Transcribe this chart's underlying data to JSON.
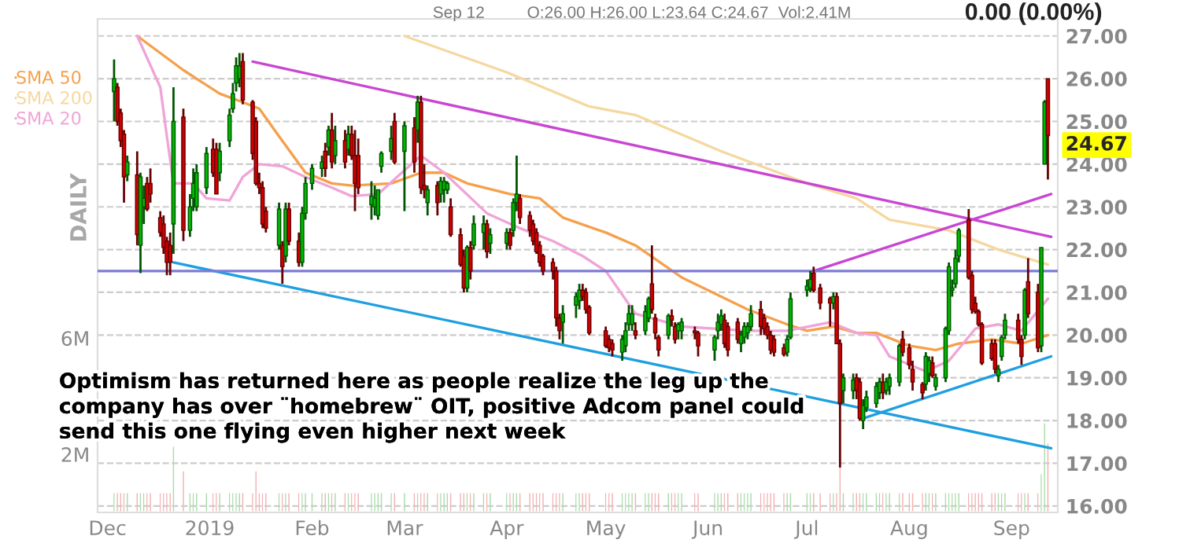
{
  "chart_data": {
    "type": "candlestick",
    "x": [
      "2018-12-03",
      "2018-12-04",
      "2018-12-05",
      "2018-12-06",
      "2018-12-07",
      "2018-12-10",
      "2018-12-11",
      "2018-12-12",
      "2018-12-13",
      "2018-12-14",
      "2018-12-17",
      "2018-12-18",
      "2018-12-19",
      "2018-12-20",
      "2018-12-21",
      "2018-12-24",
      "2018-12-26",
      "2018-12-27",
      "2018-12-28",
      "2018-12-31",
      "2019-01-02",
      "2019-01-03",
      "2019-01-04",
      "2019-01-07",
      "2019-01-08",
      "2019-01-09",
      "2019-01-10",
      "2019-01-11",
      "2019-01-14",
      "2019-01-15",
      "2019-01-16",
      "2019-01-17",
      "2019-01-18",
      "2019-01-22",
      "2019-01-23",
      "2019-01-24",
      "2019-01-25",
      "2019-01-28",
      "2019-01-29",
      "2019-01-30",
      "2019-02-01",
      "2019-02-04",
      "2019-02-05",
      "2019-02-06",
      "2019-02-07",
      "2019-02-08",
      "2019-02-11",
      "2019-02-12",
      "2019-02-13",
      "2019-02-14",
      "2019-02-15",
      "2019-02-19",
      "2019-02-20",
      "2019-02-21",
      "2019-02-22",
      "2019-02-25",
      "2019-02-26",
      "2019-03-01",
      "2019-03-04",
      "2019-03-05",
      "2019-03-06",
      "2019-03-07",
      "2019-03-08",
      "2019-03-11",
      "2019-03-12",
      "2019-03-13",
      "2019-03-14",
      "2019-03-15",
      "2019-03-18",
      "2019-03-19",
      "2019-03-20",
      "2019-03-21",
      "2019-03-22",
      "2019-03-25",
      "2019-03-26",
      "2019-03-27",
      "2019-04-01",
      "2019-04-02",
      "2019-04-03",
      "2019-04-04",
      "2019-04-05",
      "2019-04-08",
      "2019-04-09",
      "2019-04-10",
      "2019-04-11",
      "2019-04-12",
      "2019-04-15",
      "2019-04-16",
      "2019-04-17",
      "2019-04-18",
      "2019-04-22",
      "2019-04-23",
      "2019-04-24",
      "2019-04-25",
      "2019-04-26",
      "2019-05-01",
      "2019-05-02",
      "2019-05-03",
      "2019-05-06",
      "2019-05-07",
      "2019-05-08",
      "2019-05-09",
      "2019-05-10",
      "2019-05-13",
      "2019-05-14",
      "2019-05-15",
      "2019-05-16",
      "2019-05-17",
      "2019-05-20",
      "2019-05-21",
      "2019-05-22",
      "2019-05-23",
      "2019-05-24",
      "2019-05-28",
      "2019-05-29",
      "2019-06-03",
      "2019-06-04",
      "2019-06-05",
      "2019-06-06",
      "2019-06-07",
      "2019-06-10",
      "2019-06-11",
      "2019-06-12",
      "2019-06-13",
      "2019-06-14",
      "2019-06-17",
      "2019-06-18",
      "2019-06-19",
      "2019-06-20",
      "2019-06-21",
      "2019-06-24",
      "2019-06-25",
      "2019-06-26",
      "2019-07-01",
      "2019-07-02",
      "2019-07-03",
      "2019-07-05",
      "2019-07-08",
      "2019-07-09",
      "2019-07-10",
      "2019-07-11",
      "2019-07-12",
      "2019-07-15",
      "2019-07-16",
      "2019-07-17",
      "2019-07-18",
      "2019-07-19",
      "2019-07-22",
      "2019-07-23",
      "2019-07-24",
      "2019-07-25",
      "2019-07-26",
      "2019-07-29",
      "2019-07-30",
      "2019-08-01",
      "2019-08-02",
      "2019-08-05",
      "2019-08-06",
      "2019-08-07",
      "2019-08-08",
      "2019-08-09",
      "2019-08-12",
      "2019-08-13",
      "2019-08-14",
      "2019-08-15",
      "2019-08-16",
      "2019-08-19",
      "2019-08-20",
      "2019-08-21",
      "2019-08-22",
      "2019-08-23",
      "2019-08-26",
      "2019-08-27",
      "2019-08-28",
      "2019-08-29",
      "2019-08-30",
      "2019-09-03",
      "2019-09-04",
      "2019-09-05",
      "2019-09-06",
      "2019-09-09",
      "2019-09-10",
      "2019-09-11",
      "2019-09-12"
    ],
    "ohlc": [
      [
        25.7,
        26.45,
        25.0,
        26.0
      ],
      [
        25.8,
        25.9,
        24.9,
        25.0
      ],
      [
        25.2,
        25.3,
        24.4,
        24.55
      ],
      [
        24.7,
        24.8,
        23.1,
        23.7
      ],
      [
        23.75,
        24.2,
        23.6,
        24.05
      ],
      [
        23.75,
        24.3,
        22.1,
        22.35
      ],
      [
        22.1,
        23.8,
        21.45,
        23.7
      ],
      [
        23.0,
        23.5,
        22.6,
        23.2
      ],
      [
        23.55,
        23.7,
        22.9,
        22.95
      ],
      [
        23.55,
        23.9,
        23.1,
        23.3
      ],
      [
        22.75,
        22.9,
        22.3,
        22.4
      ],
      [
        22.6,
        22.8,
        21.9,
        22.05
      ],
      [
        22.2,
        22.3,
        21.4,
        21.7
      ],
      [
        22.1,
        22.4,
        21.4,
        21.7
      ],
      [
        22.6,
        25.8,
        21.9,
        25.0
      ],
      [
        25.1,
        25.3,
        22.2,
        22.45
      ],
      [
        22.45,
        23.3,
        22.3,
        23.0
      ],
      [
        23.2,
        23.9,
        22.9,
        23.55
      ],
      [
        23.0,
        24.0,
        22.9,
        23.8
      ],
      [
        23.45,
        24.4,
        23.3,
        24.25
      ],
      [
        24.35,
        24.6,
        23.7,
        23.8
      ],
      [
        24.35,
        24.5,
        23.3,
        23.3
      ],
      [
        23.8,
        24.5,
        23.6,
        24.3
      ],
      [
        24.55,
        25.3,
        24.4,
        25.15
      ],
      [
        25.3,
        25.9,
        25.2,
        25.65
      ],
      [
        25.9,
        26.5,
        25.7,
        26.3
      ],
      [
        26.0,
        26.6,
        25.8,
        26.3
      ],
      [
        26.4,
        26.6,
        25.4,
        25.5
      ],
      [
        25.45,
        25.5,
        24.1,
        24.25
      ],
      [
        25.0,
        25.1,
        23.5,
        23.55
      ],
      [
        23.55,
        23.8,
        23.3,
        23.45
      ],
      [
        23.45,
        23.6,
        22.5,
        22.6
      ],
      [
        22.9,
        23.0,
        22.4,
        22.5
      ],
      [
        22.1,
        23.1,
        22.0,
        22.95
      ],
      [
        22.1,
        22.2,
        21.2,
        21.6
      ],
      [
        21.85,
        23.1,
        21.7,
        22.95
      ],
      [
        22.95,
        23.1,
        22.1,
        22.2
      ],
      [
        22.2,
        22.4,
        21.6,
        21.7
      ],
      [
        21.7,
        23.0,
        21.6,
        22.85
      ],
      [
        22.85,
        23.7,
        22.7,
        23.55
      ],
      [
        23.55,
        24.0,
        23.4,
        23.9
      ],
      [
        23.9,
        24.2,
        23.7,
        24.05
      ],
      [
        24.3,
        24.5,
        23.7,
        23.9
      ],
      [
        24.4,
        24.9,
        24.2,
        24.8
      ],
      [
        24.8,
        25.2,
        23.9,
        24.05
      ],
      [
        24.2,
        24.9,
        24.0,
        24.55
      ],
      [
        24.55,
        24.8,
        23.9,
        24.05
      ],
      [
        24.35,
        24.9,
        24.2,
        24.7
      ],
      [
        24.7,
        24.9,
        24.1,
        24.2
      ],
      [
        24.2,
        24.8,
        22.9,
        23.55
      ],
      [
        24.2,
        24.6,
        23.3,
        23.45
      ],
      [
        23.05,
        23.6,
        22.7,
        23.25
      ],
      [
        23.0,
        23.5,
        22.8,
        23.2
      ],
      [
        22.8,
        23.4,
        22.7,
        23.4
      ],
      [
        23.95,
        24.3,
        23.8,
        24.25
      ],
      [
        24.3,
        24.9,
        24.1,
        24.6
      ],
      [
        25.0,
        25.2,
        24.0,
        24.05
      ],
      [
        24.3,
        25.0,
        22.9,
        24.9
      ],
      [
        24.85,
        25.1,
        23.8,
        24.05
      ],
      [
        24.8,
        25.6,
        24.5,
        25.45
      ],
      [
        25.45,
        25.6,
        23.3,
        23.45
      ],
      [
        23.5,
        24.0,
        23.2,
        23.4
      ],
      [
        23.1,
        23.5,
        22.8,
        23.4
      ],
      [
        23.5,
        23.6,
        22.8,
        23.1
      ],
      [
        23.3,
        23.7,
        23.1,
        23.6
      ],
      [
        23.4,
        23.7,
        23.1,
        23.6
      ],
      [
        23.4,
        23.6,
        23.3,
        23.55
      ],
      [
        23.0,
        23.2,
        22.3,
        22.35
      ],
      [
        22.35,
        22.5,
        21.6,
        21.65
      ],
      [
        21.85,
        22.0,
        21.0,
        21.1
      ],
      [
        21.1,
        22.1,
        21.0,
        22.05
      ],
      [
        22.05,
        22.2,
        21.3,
        21.5
      ],
      [
        22.1,
        22.8,
        22.0,
        22.6
      ],
      [
        22.4,
        22.8,
        22.0,
        22.6
      ],
      [
        22.6,
        22.7,
        21.8,
        21.95
      ],
      [
        22.15,
        22.5,
        21.9,
        22.35
      ],
      [
        22.15,
        22.5,
        22.0,
        22.4
      ],
      [
        22.4,
        22.5,
        22.0,
        22.1
      ],
      [
        22.45,
        23.2,
        22.3,
        23.1
      ],
      [
        23.1,
        24.2,
        22.9,
        23.3
      ],
      [
        23.2,
        23.3,
        22.6,
        22.75
      ],
      [
        22.8,
        22.9,
        22.3,
        22.45
      ],
      [
        22.6,
        22.7,
        22.1,
        22.2
      ],
      [
        22.4,
        22.5,
        21.9,
        21.95
      ],
      [
        22.1,
        22.2,
        21.6,
        21.7
      ],
      [
        21.85,
        21.9,
        21.4,
        21.5
      ],
      [
        21.7,
        21.8,
        21.3,
        21.5
      ],
      [
        21.5,
        21.6,
        20.2,
        20.4
      ],
      [
        20.4,
        20.5,
        19.9,
        20.1
      ],
      [
        20.3,
        20.7,
        19.8,
        20.5
      ],
      [
        20.7,
        21.0,
        20.4,
        20.9
      ],
      [
        20.8,
        21.2,
        20.6,
        21.05
      ],
      [
        21.05,
        21.2,
        20.8,
        20.9
      ],
      [
        21.0,
        21.1,
        20.5,
        20.6
      ],
      [
        20.65,
        20.7,
        20.0,
        20.05
      ],
      [
        20.1,
        20.2,
        19.7,
        19.75
      ],
      [
        19.9,
        20.0,
        19.6,
        19.7
      ],
      [
        19.8,
        19.9,
        19.5,
        19.65
      ],
      [
        19.6,
        20.0,
        19.4,
        19.9
      ],
      [
        19.75,
        20.3,
        19.6,
        20.1
      ],
      [
        20.25,
        20.7,
        20.1,
        20.5
      ],
      [
        20.25,
        20.7,
        20.1,
        20.5
      ],
      [
        20.1,
        20.3,
        19.9,
        20.0
      ],
      [
        20.1,
        20.7,
        20.0,
        20.55
      ],
      [
        20.4,
        20.9,
        20.3,
        20.85
      ],
      [
        21.2,
        22.1,
        20.5,
        20.6
      ],
      [
        20.4,
        20.5,
        19.9,
        20.05
      ],
      [
        19.95,
        20.0,
        19.5,
        19.65
      ],
      [
        20.0,
        20.5,
        19.9,
        20.45
      ],
      [
        20.45,
        20.6,
        20.2,
        20.35
      ],
      [
        20.2,
        20.3,
        19.8,
        19.9
      ],
      [
        20.1,
        20.3,
        19.9,
        20.25
      ],
      [
        20.1,
        20.4,
        19.9,
        20.3
      ],
      [
        20.1,
        20.2,
        19.9,
        20.05
      ],
      [
        20.05,
        20.1,
        19.5,
        19.75
      ],
      [
        19.65,
        20.0,
        19.4,
        19.95
      ],
      [
        20.1,
        20.5,
        19.9,
        20.3
      ],
      [
        20.25,
        20.6,
        20.1,
        20.45
      ],
      [
        20.35,
        20.5,
        19.7,
        19.8
      ],
      [
        20.2,
        20.3,
        19.5,
        19.65
      ],
      [
        20.3,
        20.4,
        19.8,
        19.9
      ],
      [
        19.8,
        20.1,
        19.6,
        20.0
      ],
      [
        19.95,
        20.3,
        19.8,
        20.2
      ],
      [
        20.05,
        20.3,
        19.9,
        20.2
      ],
      [
        20.2,
        20.7,
        20.1,
        20.5
      ],
      [
        20.6,
        20.8,
        20.0,
        20.2
      ],
      [
        20.4,
        20.5,
        20.0,
        20.15
      ],
      [
        20.2,
        20.3,
        19.9,
        20.0
      ],
      [
        20.0,
        20.1,
        19.55,
        19.65
      ],
      [
        19.9,
        20.0,
        19.5,
        19.6
      ],
      [
        19.7,
        19.8,
        19.5,
        19.55
      ],
      [
        19.6,
        20.0,
        19.5,
        19.9
      ],
      [
        19.95,
        21.0,
        19.9,
        20.85
      ],
      [
        21.05,
        21.3,
        20.9,
        21.15
      ],
      [
        21.1,
        21.5,
        21.0,
        21.3
      ],
      [
        21.45,
        21.6,
        21.0,
        21.05
      ],
      [
        21.1,
        21.2,
        20.6,
        20.75
      ],
      [
        20.85,
        20.9,
        20.2,
        20.75
      ],
      [
        20.75,
        21.0,
        20.6,
        20.9
      ],
      [
        20.9,
        21.0,
        19.8,
        19.8
      ],
      [
        19.8,
        19.9,
        16.9,
        18.4
      ],
      [
        18.7,
        19.1,
        18.4,
        19.0
      ],
      [
        18.7,
        19.1,
        18.5,
        18.95
      ],
      [
        19.0,
        19.1,
        18.5,
        18.7
      ],
      [
        18.9,
        19.0,
        18.0,
        18.05
      ],
      [
        18.0,
        18.5,
        17.8,
        18.35
      ],
      [
        18.3,
        18.7,
        18.2,
        18.55
      ],
      [
        18.4,
        18.9,
        18.3,
        18.8
      ],
      [
        18.65,
        19.0,
        18.5,
        18.9
      ],
      [
        18.9,
        19.1,
        18.5,
        18.65
      ],
      [
        18.7,
        19.0,
        18.6,
        18.9
      ],
      [
        18.8,
        19.1,
        18.6,
        19.0
      ],
      [
        18.9,
        19.8,
        18.8,
        19.75
      ],
      [
        19.9,
        20.1,
        19.5,
        19.6
      ],
      [
        19.7,
        19.8,
        19.2,
        19.3
      ],
      [
        19.2,
        19.4,
        18.7,
        18.9
      ],
      [
        18.85,
        18.9,
        18.5,
        18.65
      ],
      [
        18.85,
        19.6,
        18.7,
        19.5
      ],
      [
        19.1,
        19.5,
        18.9,
        19.4
      ],
      [
        19.35,
        19.5,
        19.0,
        19.05
      ],
      [
        18.8,
        19.1,
        18.7,
        19.0
      ],
      [
        19.0,
        20.2,
        18.9,
        20.15
      ],
      [
        20.1,
        21.7,
        20.0,
        21.6
      ],
      [
        21.05,
        21.3,
        20.9,
        21.1
      ],
      [
        21.2,
        22.0,
        21.1,
        21.8
      ],
      [
        21.85,
        22.5,
        21.7,
        22.45
      ],
      [
        22.7,
        22.95,
        21.3,
        21.35
      ],
      [
        21.4,
        21.5,
        20.5,
        20.6
      ],
      [
        20.75,
        20.9,
        20.5,
        20.55
      ],
      [
        20.55,
        20.6,
        20.2,
        20.25
      ],
      [
        20.25,
        20.3,
        19.3,
        19.35
      ],
      [
        19.8,
        19.9,
        19.4,
        19.45
      ],
      [
        19.8,
        19.9,
        19.1,
        19.2
      ],
      [
        19.05,
        19.3,
        18.9,
        19.2
      ],
      [
        19.5,
        20.0,
        19.4,
        19.95
      ],
      [
        20.0,
        20.5,
        19.9,
        20.35
      ],
      [
        20.35,
        20.5,
        19.8,
        19.9
      ],
      [
        19.9,
        20.0,
        19.3,
        19.5
      ],
      [
        20.0,
        21.1,
        19.9,
        21.05
      ],
      [
        21.25,
        21.8,
        20.4,
        20.5
      ],
      [
        21.0,
        21.2,
        19.6,
        19.7
      ],
      [
        19.75,
        22.05,
        19.6,
        22.05
      ],
      [
        24.0,
        25.5,
        24.0,
        25.45
      ],
      [
        26.0,
        26.0,
        23.64,
        24.67
      ]
    ],
    "colors": [
      "#00b800",
      "#d00000",
      "#d00000",
      "#d00000",
      "#00b800",
      "#d00000",
      "#00b800",
      "#00b800",
      "#d00000",
      "#d00000",
      "#d00000",
      "#d00000",
      "#d00000",
      "#d00000",
      "#00b800",
      "#d00000",
      "#00b800",
      "#00b800",
      "#00b800",
      "#00b800",
      "#d00000",
      "#d00000",
      "#00b800",
      "#00b800",
      "#00b800",
      "#00b800",
      "#00b800",
      "#d00000",
      "#d00000",
      "#d00000",
      "#d00000",
      "#d00000",
      "#d00000",
      "#00b800",
      "#d00000",
      "#00b800",
      "#d00000",
      "#d00000",
      "#00b800",
      "#00b800",
      "#00b800",
      "#00b800",
      "#d00000",
      "#00b800",
      "#d00000",
      "#00b800",
      "#d00000",
      "#00b800",
      "#d00000",
      "#d00000",
      "#d00000",
      "#00b800",
      "#00b800",
      "#00b800",
      "#00b800",
      "#00b800",
      "#d00000",
      "#00b800",
      "#d00000",
      "#00b800",
      "#d00000",
      "#d00000",
      "#00b800",
      "#d00000",
      "#00b800",
      "#00b800",
      "#00b800",
      "#d00000",
      "#d00000",
      "#d00000",
      "#00b800",
      "#d00000",
      "#00b800",
      "#00b800",
      "#d00000",
      "#00b800",
      "#00b800",
      "#d00000",
      "#00b800",
      "#00b800",
      "#d00000",
      "#d00000",
      "#d00000",
      "#d00000",
      "#d00000",
      "#d00000",
      "#d00000",
      "#d00000",
      "#d00000",
      "#00b800",
      "#00b800",
      "#00b800",
      "#d00000",
      "#d00000",
      "#d00000",
      "#d00000",
      "#d00000",
      "#d00000",
      "#00b800",
      "#00b800",
      "#00b800",
      "#00b800",
      "#d00000",
      "#00b800",
      "#00b800",
      "#d00000",
      "#d00000",
      "#d00000",
      "#00b800",
      "#d00000",
      "#d00000",
      "#00b800",
      "#00b800",
      "#d00000",
      "#d00000",
      "#00b800",
      "#00b800",
      "#00b800",
      "#d00000",
      "#d00000",
      "#d00000",
      "#00b800",
      "#00b800",
      "#00b800",
      "#00b800",
      "#d00000",
      "#d00000",
      "#d00000",
      "#d00000",
      "#d00000",
      "#d00000",
      "#00b800",
      "#00b800",
      "#00b800",
      "#00b800",
      "#d00000",
      "#d00000",
      "#d00000",
      "#00b800",
      "#d00000",
      "#d00000",
      "#00b800",
      "#00b800",
      "#d00000",
      "#d00000",
      "#00b800",
      "#00b800",
      "#00b800",
      "#00b800",
      "#d00000",
      "#00b800",
      "#00b800",
      "#00b800",
      "#d00000",
      "#d00000",
      "#d00000",
      "#d00000",
      "#00b800",
      "#00b800",
      "#d00000",
      "#00b800",
      "#00b800",
      "#00b800",
      "#00b800",
      "#00b800",
      "#00b800",
      "#d00000",
      "#d00000",
      "#d00000",
      "#d00000",
      "#d00000",
      "#d00000",
      "#d00000",
      "#00b800",
      "#00b800",
      "#00b800",
      "#d00000",
      "#d00000",
      "#00b800",
      "#d00000",
      "#d00000",
      "#00b800",
      "#00b800",
      "#d00000"
    ],
    "series": [
      {
        "type": "bar",
        "axis": "y2",
        "colors": [
          "#a8dca8",
          "#f4b0b0",
          "#f4b0b0",
          "#f4b0b0",
          "#a8dca8",
          "#f4b0b0",
          "#a8dca8",
          "#a8dca8",
          "#f4b0b0",
          "#f4b0b0",
          "#f4b0b0",
          "#f4b0b0",
          "#f4b0b0",
          "#f4b0b0",
          "#a8dca8",
          "#f4b0b0",
          "#a8dca8",
          "#a8dca8",
          "#a8dca8",
          "#a8dca8",
          "#f4b0b0",
          "#f4b0b0",
          "#a8dca8",
          "#a8dca8",
          "#a8dca8",
          "#a8dca8",
          "#a8dca8",
          "#f4b0b0",
          "#f4b0b0",
          "#f4b0b0",
          "#f4b0b0",
          "#f4b0b0",
          "#f4b0b0",
          "#a8dca8",
          "#f4b0b0",
          "#a8dca8",
          "#f4b0b0",
          "#f4b0b0",
          "#a8dca8",
          "#a8dca8",
          "#a8dca8",
          "#a8dca8",
          "#f4b0b0",
          "#a8dca8",
          "#f4b0b0",
          "#a8dca8",
          "#f4b0b0",
          "#a8dca8",
          "#f4b0b0",
          "#f4b0b0",
          "#f4b0b0",
          "#a8dca8",
          "#a8dca8",
          "#a8dca8",
          "#a8dca8",
          "#a8dca8",
          "#f4b0b0",
          "#a8dca8",
          "#f4b0b0",
          "#a8dca8",
          "#f4b0b0",
          "#f4b0b0",
          "#a8dca8",
          "#f4b0b0",
          "#a8dca8",
          "#a8dca8",
          "#a8dca8",
          "#f4b0b0",
          "#f4b0b0",
          "#f4b0b0",
          "#a8dca8",
          "#f4b0b0",
          "#a8dca8",
          "#a8dca8",
          "#f4b0b0",
          "#a8dca8",
          "#a8dca8",
          "#f4b0b0",
          "#a8dca8",
          "#a8dca8",
          "#f4b0b0",
          "#f4b0b0",
          "#f4b0b0",
          "#f4b0b0",
          "#f4b0b0",
          "#f4b0b0",
          "#f4b0b0",
          "#f4b0b0",
          "#f4b0b0",
          "#a8dca8",
          "#a8dca8",
          "#a8dca8",
          "#f4b0b0",
          "#f4b0b0",
          "#f4b0b0",
          "#f4b0b0",
          "#f4b0b0",
          "#f4b0b0",
          "#a8dca8",
          "#a8dca8",
          "#a8dca8",
          "#a8dca8",
          "#f4b0b0",
          "#a8dca8",
          "#a8dca8",
          "#f4b0b0",
          "#f4b0b0",
          "#f4b0b0",
          "#a8dca8",
          "#f4b0b0",
          "#f4b0b0",
          "#a8dca8",
          "#a8dca8",
          "#f4b0b0",
          "#f4b0b0",
          "#a8dca8",
          "#a8dca8",
          "#a8dca8",
          "#f4b0b0",
          "#f4b0b0",
          "#f4b0b0",
          "#a8dca8",
          "#a8dca8",
          "#a8dca8",
          "#a8dca8",
          "#f4b0b0",
          "#f4b0b0",
          "#f4b0b0",
          "#f4b0b0",
          "#f4b0b0",
          "#f4b0b0",
          "#a8dca8",
          "#a8dca8",
          "#a8dca8",
          "#a8dca8",
          "#f4b0b0",
          "#f4b0b0",
          "#f4b0b0",
          "#a8dca8",
          "#f4b0b0",
          "#f4b0b0",
          "#a8dca8",
          "#a8dca8",
          "#f4b0b0",
          "#f4b0b0",
          "#a8dca8",
          "#a8dca8",
          "#a8dca8",
          "#a8dca8",
          "#f4b0b0",
          "#a8dca8",
          "#a8dca8",
          "#a8dca8",
          "#f4b0b0",
          "#f4b0b0",
          "#f4b0b0",
          "#f4b0b0",
          "#a8dca8",
          "#a8dca8",
          "#f4b0b0",
          "#a8dca8",
          "#a8dca8",
          "#a8dca8",
          "#a8dca8",
          "#a8dca8",
          "#a8dca8",
          "#f4b0b0",
          "#f4b0b0",
          "#f4b0b0",
          "#f4b0b0",
          "#f4b0b0",
          "#f4b0b0",
          "#f4b0b0",
          "#a8dca8",
          "#a8dca8",
          "#a8dca8",
          "#f4b0b0",
          "#f4b0b0",
          "#a8dca8",
          "#f4b0b0",
          "#f4b0b0",
          "#a8dca8",
          "#a8dca8",
          "#f4b0b0"
        ],
        "values": [
          0.7,
          0.7,
          0.7,
          0.7,
          0.7,
          0.7,
          0.7,
          0.7,
          0.7,
          0.7,
          0.7,
          0.7,
          0.7,
          0.7,
          2.3,
          1.45,
          0.7,
          0.7,
          0.7,
          0.7,
          0.7,
          0.7,
          0.7,
          0.7,
          0.7,
          0.7,
          0.7,
          0.7,
          0.7,
          1.45,
          0.7,
          0.7,
          0.7,
          0.7,
          0.7,
          0.7,
          0.7,
          0.7,
          0.7,
          0.7,
          0.7,
          0.7,
          0.7,
          0.7,
          0.7,
          0.7,
          0.7,
          0.7,
          0.7,
          0.7,
          0.7,
          0.7,
          0.7,
          0.7,
          0.7,
          0.7,
          0.7,
          0.7,
          0.7,
          0.7,
          0.7,
          0.7,
          0.7,
          0.7,
          0.7,
          0.7,
          0.7,
          0.7,
          0.7,
          0.7,
          0.7,
          0.7,
          0.7,
          0.7,
          0.7,
          0.7,
          0.7,
          0.7,
          0.7,
          0.7,
          0.7,
          0.7,
          0.7,
          0.7,
          0.7,
          0.7,
          0.7,
          0.7,
          0.7,
          0.7,
          0.7,
          0.7,
          0.7,
          0.7,
          0.7,
          0.7,
          0.7,
          0.7,
          0.7,
          0.7,
          0.7,
          0.7,
          0.7,
          0.7,
          0.7,
          0.7,
          0.7,
          0.7,
          0.7,
          0.7,
          0.7,
          0.7,
          0.7,
          0.7,
          0.7,
          0.7,
          0.7,
          0.7,
          0.7,
          0.7,
          0.7,
          0.7,
          0.7,
          0.7,
          0.7,
          0.7,
          0.7,
          0.7,
          0.7,
          0.7,
          0.7,
          0.7,
          0.7,
          0.7,
          0.7,
          0.7,
          0.7,
          0.7,
          0.7,
          0.7,
          1.6,
          0.7,
          0.7,
          0.7,
          0.7,
          0.7,
          0.7,
          0.7,
          0.7,
          0.7,
          0.7,
          0.7,
          0.7,
          0.7,
          0.7,
          0.7,
          0.7,
          0.7,
          0.7,
          0.7,
          0.7,
          0.7,
          0.7,
          0.7,
          0.7,
          0.7,
          0.7,
          0.7,
          0.7,
          0.7,
          0.7,
          0.7,
          0.7,
          0.7,
          0.7,
          0.7,
          0.7,
          0.7,
          0.7,
          0.7,
          0.7,
          1.35,
          3.1,
          2.41
        ]
      },
      {
        "type": "line",
        "name": "SMA 50",
        "color": "#f5a04c",
        "x": [
          "2018-12-10",
          "2018-12-24",
          "2019-01-04",
          "2019-01-11",
          "2019-01-16",
          "2019-01-22",
          "2019-01-30",
          "2019-02-07",
          "2019-02-13",
          "2019-02-25",
          "2019-03-06",
          "2019-03-13",
          "2019-03-20",
          "2019-04-02",
          "2019-04-11",
          "2019-04-18",
          "2019-05-01",
          "2019-05-10",
          "2019-05-24",
          "2019-06-13",
          "2019-06-25",
          "2019-07-01",
          "2019-07-09",
          "2019-07-16",
          "2019-07-22",
          "2019-08-01",
          "2019-08-09",
          "2019-08-16",
          "2019-08-26",
          "2019-09-04",
          "2019-09-12"
        ],
        "values": [
          27.0,
          26.2,
          25.65,
          25.45,
          25.3,
          24.65,
          23.8,
          23.55,
          23.5,
          23.55,
          23.8,
          23.8,
          23.55,
          23.3,
          23.2,
          22.75,
          22.4,
          22.1,
          21.35,
          20.6,
          20.25,
          20.1,
          20.2,
          20.05,
          20.05,
          19.75,
          19.65,
          19.8,
          19.9,
          19.8,
          20.0
        ]
      },
      {
        "type": "line",
        "name": "SMA 200",
        "color": "#f5d8a0",
        "x": [
          "2019-03-01",
          "2019-04-01",
          "2019-04-26",
          "2019-05-10",
          "2019-06-05",
          "2019-07-01",
          "2019-07-16",
          "2019-07-26",
          "2019-08-13",
          "2019-08-28",
          "2019-09-12"
        ],
        "values": [
          27.0,
          26.15,
          25.35,
          25.15,
          24.3,
          23.55,
          23.2,
          22.7,
          22.45,
          22.0,
          21.65
        ]
      },
      {
        "type": "line",
        "name": "SMA 20",
        "color": "#f0a4d8",
        "x": [
          "2018-12-10",
          "2018-12-17",
          "2018-12-19",
          "2018-12-21",
          "2018-12-27",
          "2018-12-31",
          "2019-01-07",
          "2019-01-11",
          "2019-01-16",
          "2019-01-23",
          "2019-01-30",
          "2019-02-07",
          "2019-02-13",
          "2019-02-21",
          "2019-03-06",
          "2019-03-13",
          "2019-03-26",
          "2019-04-05",
          "2019-04-15",
          "2019-04-24",
          "2019-05-01",
          "2019-05-10",
          "2019-05-24",
          "2019-06-13",
          "2019-06-25",
          "2019-07-08",
          "2019-07-16",
          "2019-07-22",
          "2019-07-26",
          "2019-08-06",
          "2019-08-13",
          "2019-08-21",
          "2019-08-28",
          "2019-09-04",
          "2019-09-12"
        ],
        "values": [
          27.0,
          25.8,
          24.65,
          23.55,
          23.55,
          23.2,
          23.15,
          23.7,
          24.0,
          23.95,
          23.7,
          23.45,
          23.25,
          23.3,
          24.2,
          23.8,
          22.85,
          22.5,
          22.2,
          21.85,
          21.5,
          20.5,
          20.2,
          20.1,
          20.1,
          20.3,
          20.05,
          20.0,
          19.5,
          19.15,
          19.4,
          20.15,
          20.25,
          20.1,
          20.85
        ]
      },
      {
        "type": "line",
        "color": "#c846d2",
        "x": [
          "2019-01-14",
          "2019-09-13"
        ],
        "values": [
          26.4,
          22.3
        ]
      },
      {
        "type": "line",
        "color": "#c846d2",
        "x": [
          "2019-07-03",
          "2019-09-13"
        ],
        "values": [
          21.5,
          23.3
        ]
      },
      {
        "type": "line",
        "color": "#1e9fe0",
        "x": [
          "2018-12-21",
          "2019-09-13"
        ],
        "values": [
          21.7,
          17.35
        ]
      },
      {
        "type": "line",
        "color": "#1e9fe0",
        "x": [
          "2019-07-18",
          "2019-09-13"
        ],
        "values": [
          18.05,
          19.5
        ]
      }
    ],
    "ref_lines": [
      {
        "axis": "y",
        "value": 21.5,
        "color": "#7b7bd4"
      }
    ],
    "annotations": [
      "Sep 12",
      "O:26.00 H:26.00 L:23.64 C:24.67",
      "Vol:2.41M",
      "0.00 (0.00%)",
      "DAILY",
      "Optimism has returned here as people realize the leg up the\ncompany has over ¨homebrew¨ OIT, positive Adcom panel could\nsend this one flying even higher next week",
      {
        "text": "24.67",
        "x": "2019-09-12",
        "y": 24.67
      }
    ],
    "xlim": [
      "2018-11-28",
      "2019-09-15"
    ],
    "xticks": [
      {
        "value": "2018-12-01",
        "label": "Dec"
      },
      {
        "value": "2019-01-01",
        "label": "2019"
      },
      {
        "value": "2019-02-01",
        "label": "Feb"
      },
      {
        "value": "2019-03-01",
        "label": "Mar"
      },
      {
        "value": "2019-04-01",
        "label": "Apr"
      },
      {
        "value": "2019-05-01",
        "label": "May"
      },
      {
        "value": "2019-06-01",
        "label": "Jun"
      },
      {
        "value": "2019-07-01",
        "label": "Jul"
      },
      {
        "value": "2019-08-01",
        "label": "Aug"
      },
      {
        "value": "2019-09-01",
        "label": "Sep"
      }
    ],
    "ylim": [
      15.85,
      27.4
    ],
    "yticks": [
      {
        "value": 16,
        "label": "16.00"
      },
      {
        "value": 17,
        "label": "17.00"
      },
      {
        "value": 18,
        "label": "18.00"
      },
      {
        "value": 19,
        "label": "19.00"
      },
      {
        "value": 20,
        "label": "20.00"
      },
      {
        "value": 21,
        "label": "21.00"
      },
      {
        "value": 22,
        "label": "22.00"
      },
      {
        "value": 23,
        "label": "23.00"
      },
      {
        "value": 24,
        "label": "24.00"
      },
      {
        "value": 25,
        "label": "25.00"
      },
      {
        "value": 26,
        "label": "26.00"
      },
      {
        "value": 27,
        "label": "27.00"
      }
    ],
    "y2lim": [
      0,
      17
    ],
    "y2ticks": [
      {
        "value": 2,
        "label": "2M"
      },
      {
        "value": 6,
        "label": "6M"
      }
    ],
    "grid": true,
    "legend": "top left"
  }
}
